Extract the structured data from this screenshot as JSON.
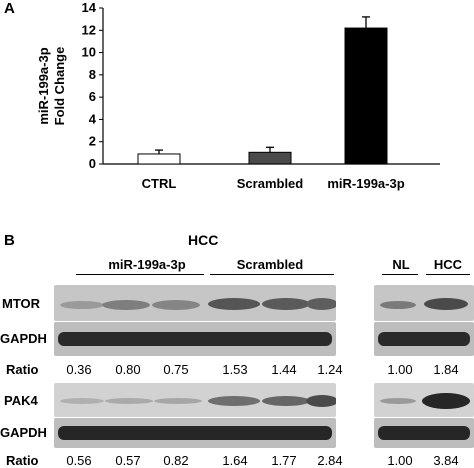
{
  "panel_a": {
    "letter": "A",
    "chart_data": {
      "type": "bar",
      "title": "",
      "xlabel": "",
      "ylabel": "miR-199a-3p Fold Change",
      "ylabel_lines": [
        "miR-199a-3p",
        "Fold Change"
      ],
      "categories": [
        "CTRL",
        "Scrambled",
        "miR-199a-3p"
      ],
      "values": [
        0.9,
        1.05,
        12.2
      ],
      "errors": [
        0.35,
        0.45,
        1.0
      ],
      "bar_colors": [
        "#ffffff",
        "#4a4a4a",
        "#000000"
      ],
      "ylim": [
        0,
        14
      ],
      "yticks": [
        "0",
        "2",
        "4",
        "6",
        "8",
        "10",
        "12",
        "14"
      ],
      "grid": false
    }
  },
  "panel_b": {
    "letter": "B",
    "hcc_header": "HCC",
    "group_mir": "miR-199a-3p",
    "group_scrambled": "Scrambled",
    "nl_header": "NL",
    "hcc_header_right": "HCC",
    "rows": [
      {
        "label": "MTOR",
        "type": "blot"
      },
      {
        "label": "GAPDH",
        "type": "blot"
      },
      {
        "label": "Ratio",
        "type": "ratio",
        "left": [
          "0.36",
          "0.80",
          "0.75",
          "1.53",
          "1.44",
          "1.24"
        ],
        "right": [
          "1.00",
          "1.84"
        ]
      },
      {
        "label": "PAK4",
        "type": "blot"
      },
      {
        "label": "GAPDH",
        "type": "blot"
      },
      {
        "label": "Ratio",
        "type": "ratio",
        "left": [
          "0.56",
          "0.57",
          "0.82",
          "1.64",
          "1.77",
          "2.84"
        ],
        "right": [
          "1.00",
          "3.84"
        ]
      }
    ]
  }
}
